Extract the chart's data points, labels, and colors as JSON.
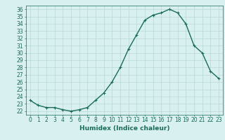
{
  "x": [
    0,
    1,
    2,
    3,
    4,
    5,
    6,
    7,
    8,
    9,
    10,
    11,
    12,
    13,
    14,
    15,
    16,
    17,
    18,
    19,
    20,
    21,
    22,
    23
  ],
  "y": [
    23.5,
    22.8,
    22.5,
    22.5,
    22.2,
    22.0,
    22.2,
    22.5,
    23.5,
    24.5,
    26.0,
    28.0,
    30.5,
    32.5,
    34.5,
    35.2,
    35.5,
    36.0,
    35.5,
    34.0,
    31.0,
    30.0,
    27.5,
    26.5
  ],
  "line_color": "#1a6b5a",
  "marker": "+",
  "marker_size": 3,
  "xlabel": "Humidex (Indice chaleur)",
  "ylabel": "",
  "title": "",
  "xlim": [
    -0.5,
    23.5
  ],
  "ylim": [
    21.5,
    36.5
  ],
  "yticks": [
    22,
    23,
    24,
    25,
    26,
    27,
    28,
    29,
    30,
    31,
    32,
    33,
    34,
    35,
    36
  ],
  "xticks": [
    0,
    1,
    2,
    3,
    4,
    5,
    6,
    7,
    8,
    9,
    10,
    11,
    12,
    13,
    14,
    15,
    16,
    17,
    18,
    19,
    20,
    21,
    22,
    23
  ],
  "background_color": "#d8f0f0",
  "grid_color": "#b8d8d8",
  "font_color": "#1a6b5a",
  "font_size": 5.5,
  "xlabel_fontsize": 6.5,
  "line_width": 1.0
}
